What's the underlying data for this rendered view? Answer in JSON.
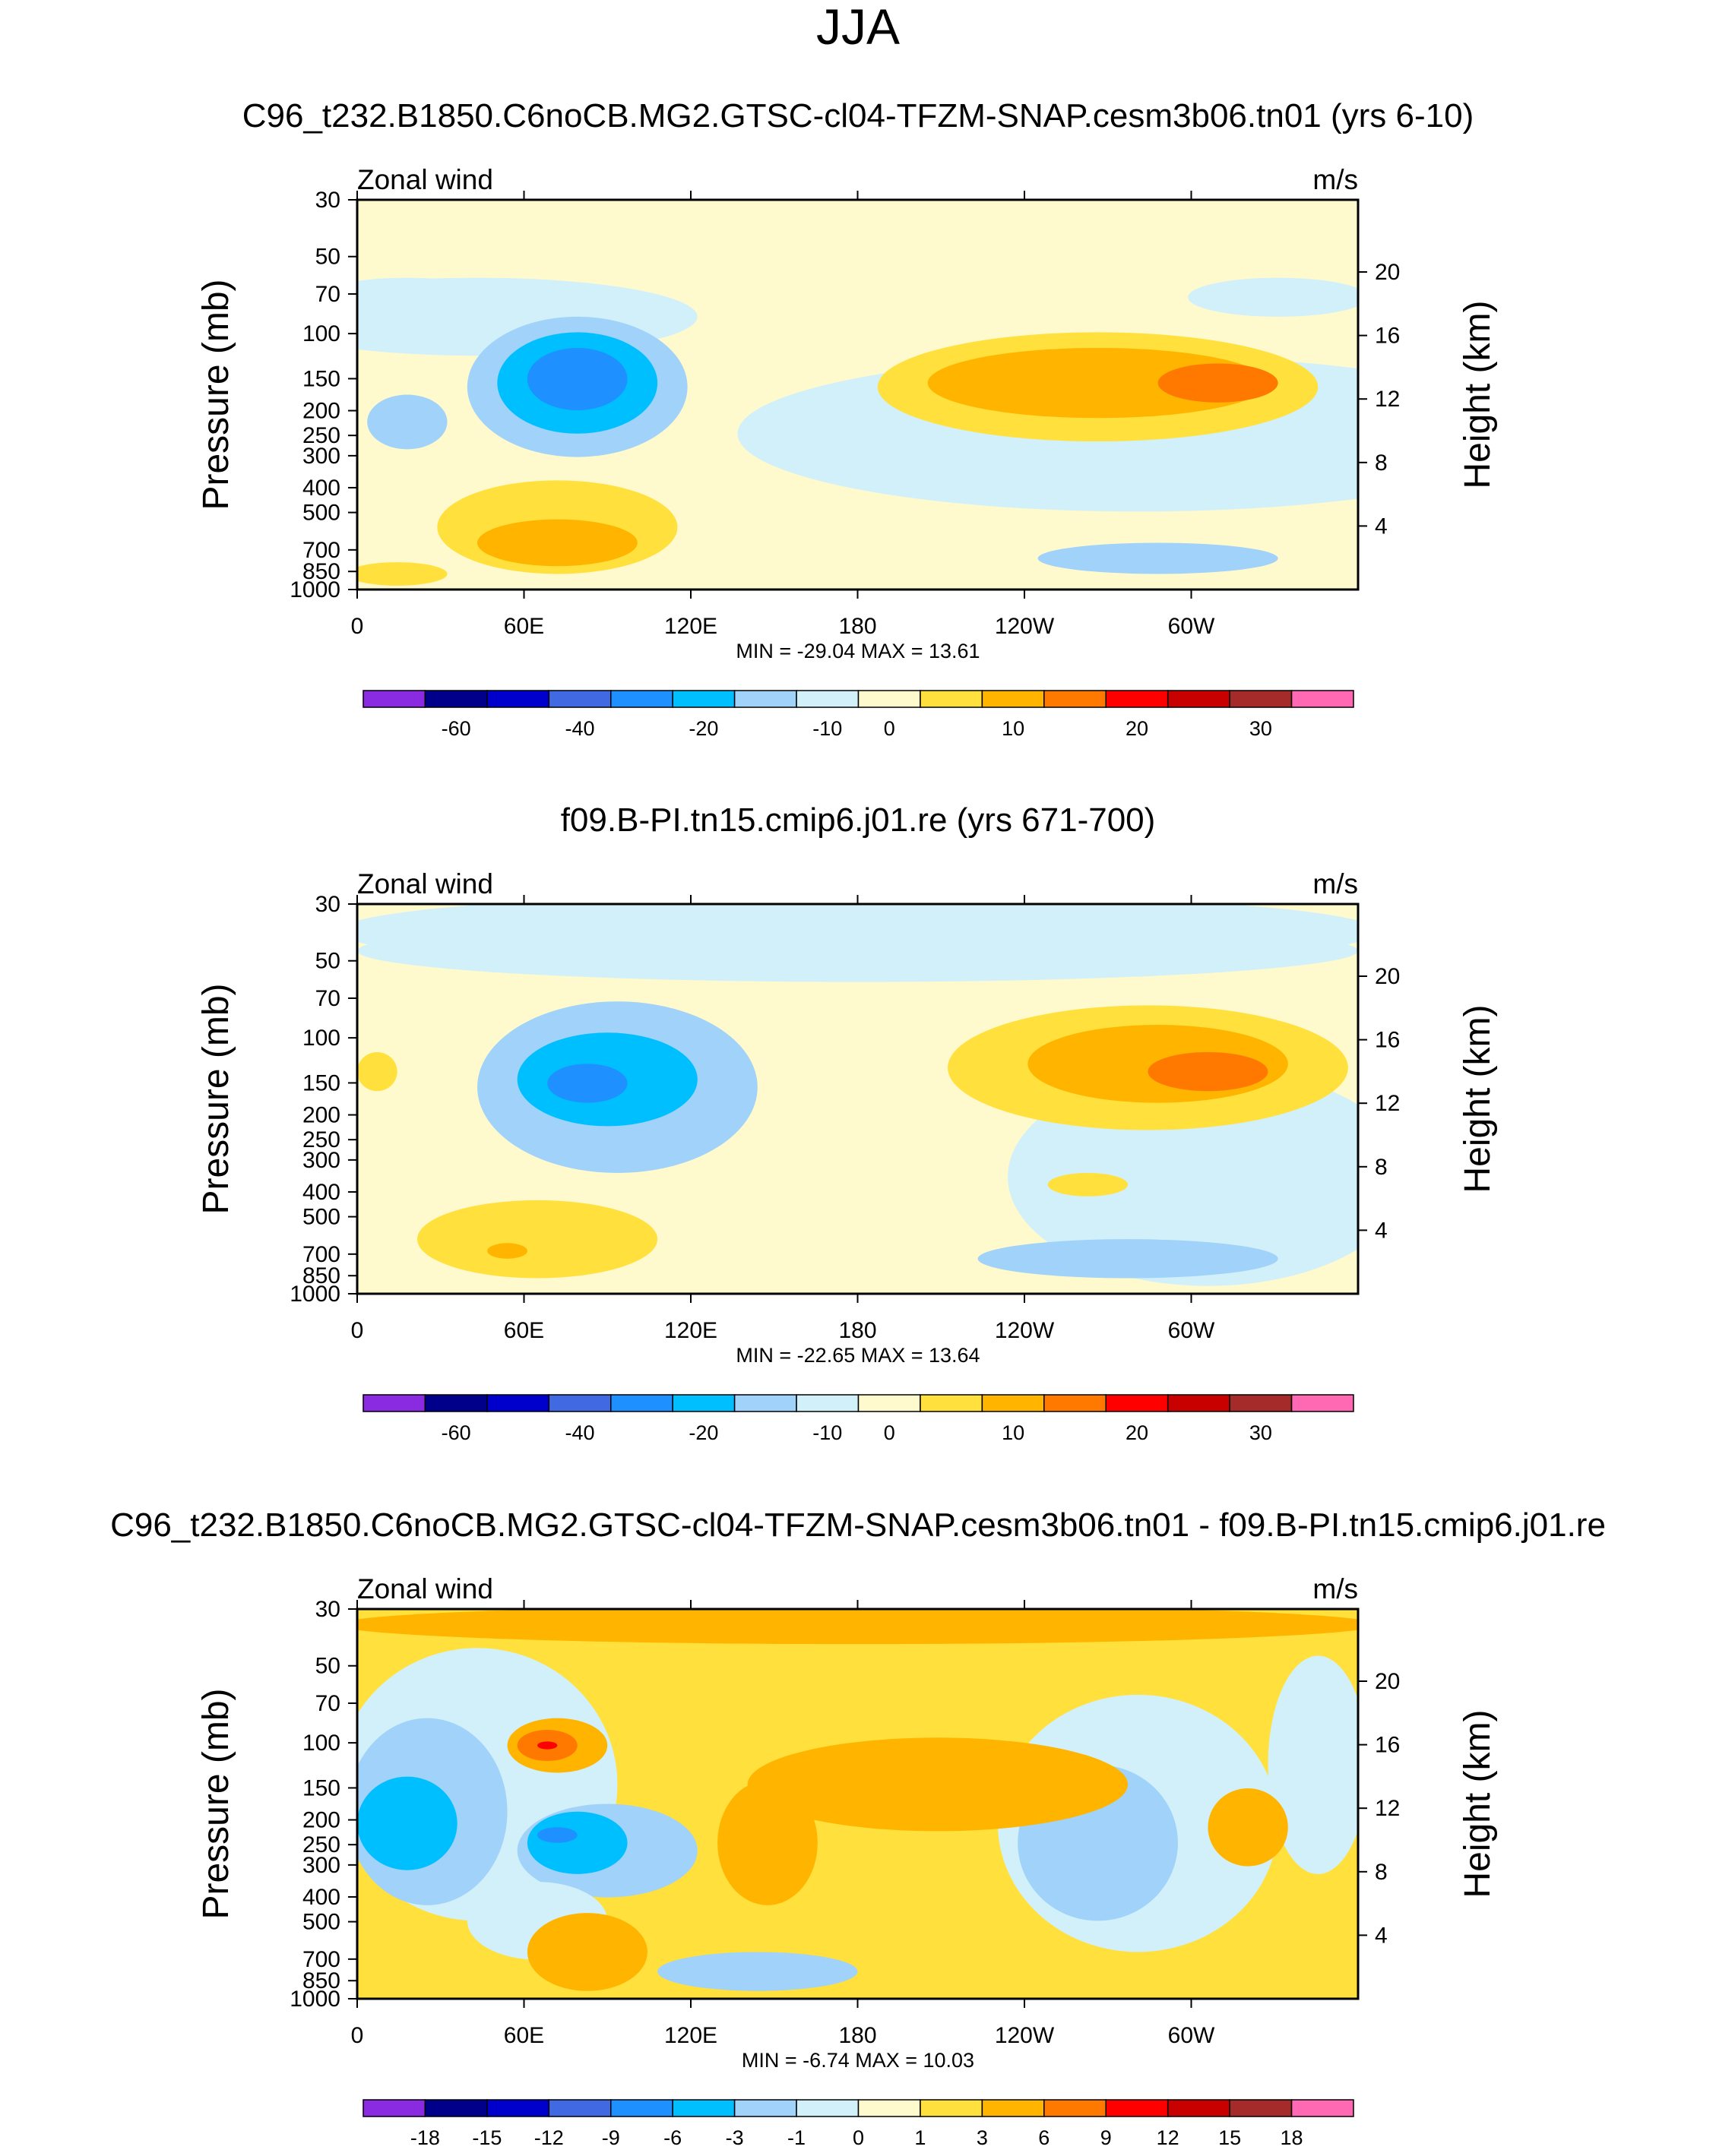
{
  "figure_title": "JJA",
  "chart_data": [
    {
      "type": "heatmap",
      "title": "C96_t232.B1850.C6noCB.MG2.GTSC-cl04-TFZM-SNAP.cesm3b06.tn01 (yrs 6-10)",
      "left_label": "Zonal wind",
      "right_label": "m/s",
      "ylabel": "Pressure (mb)",
      "ylabel_right": "Height (km)",
      "x_ticks": [
        "0",
        "60E",
        "120E",
        "180",
        "120W",
        "60W"
      ],
      "y_ticks": [
        "30",
        "50",
        "70",
        "100",
        "150",
        "200",
        "250",
        "300",
        "400",
        "500",
        "700",
        "850",
        "1000"
      ],
      "height_ticks": [
        "20",
        "16",
        "12",
        "8",
        "4"
      ],
      "xlim": [
        0,
        360
      ],
      "ylim": [
        1000,
        30
      ],
      "min_max": "MIN = -29.04  MAX =  13.61",
      "min": -29.04,
      "max": 13.61,
      "colorbar_labels": [
        "-60",
        "-40",
        "-20",
        "-10",
        "0",
        "10",
        "20",
        "30"
      ],
      "features": [
        {
          "lon": 0,
          "p": 1000,
          "value": 0
        }
      ]
    },
    {
      "type": "heatmap",
      "title": "f09.B-PI.tn15.cmip6.j01.re (yrs 671-700)",
      "left_label": "Zonal wind",
      "right_label": "m/s",
      "ylabel": "Pressure (mb)",
      "ylabel_right": "Height (km)",
      "x_ticks": [
        "0",
        "60E",
        "120E",
        "180",
        "120W",
        "60W"
      ],
      "y_ticks": [
        "30",
        "50",
        "70",
        "100",
        "150",
        "200",
        "250",
        "300",
        "400",
        "500",
        "700",
        "850",
        "1000"
      ],
      "height_ticks": [
        "20",
        "16",
        "12",
        "8",
        "4"
      ],
      "xlim": [
        0,
        360
      ],
      "ylim": [
        1000,
        30
      ],
      "min_max": "MIN = -22.65  MAX =  13.64",
      "min": -22.65,
      "max": 13.64,
      "colorbar_labels": [
        "-60",
        "-40",
        "-20",
        "-10",
        "0",
        "10",
        "20",
        "30"
      ]
    },
    {
      "type": "heatmap",
      "title": "C96_t232.B1850.C6noCB.MG2.GTSC-cl04-TFZM-SNAP.cesm3b06.tn01 - f09.B-PI.tn15.cmip6.j01.re",
      "left_label": "Zonal wind",
      "right_label": "m/s",
      "ylabel": "Pressure (mb)",
      "ylabel_right": "Height (km)",
      "x_ticks": [
        "0",
        "60E",
        "120E",
        "180",
        "120W",
        "60W"
      ],
      "y_ticks": [
        "30",
        "50",
        "70",
        "100",
        "150",
        "200",
        "250",
        "300",
        "400",
        "500",
        "700",
        "850",
        "1000"
      ],
      "height_ticks": [
        "20",
        "16",
        "12",
        "8",
        "4"
      ],
      "xlim": [
        0,
        360
      ],
      "ylim": [
        1000,
        30
      ],
      "min_max": "MIN = -6.74  MAX = 10.03",
      "min": -6.74,
      "max": 10.03,
      "colorbar_labels": [
        "-18",
        "-15",
        "-12",
        "-9",
        "-6",
        "-3",
        "-1",
        "0",
        "1",
        "3",
        "6",
        "9",
        "12",
        "15",
        "18"
      ]
    }
  ],
  "colorbar_colors": [
    "#8a2be2",
    "#00008b",
    "#0000cd",
    "#4169e1",
    "#1e90ff",
    "#00bfff",
    "#a0d2fa",
    "#d2f0fa",
    "#fffacd",
    "#ffe03c",
    "#ffb400",
    "#ff7800",
    "#ff0000",
    "#c80000",
    "#a52a2a",
    "#ff69b4"
  ]
}
